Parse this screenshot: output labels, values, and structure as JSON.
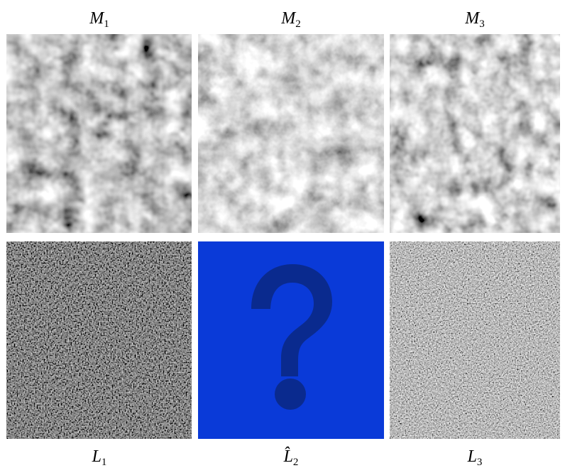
{
  "panels": {
    "top": [
      {
        "letter": "M",
        "subscript": "1"
      },
      {
        "letter": "M",
        "subscript": "2"
      },
      {
        "letter": "M",
        "subscript": "3"
      }
    ],
    "bottom": [
      {
        "letter": "L",
        "subscript": "1"
      },
      {
        "letter": "L̂",
        "subscript": "2"
      },
      {
        "letter": "L",
        "subscript": "3"
      }
    ]
  }
}
